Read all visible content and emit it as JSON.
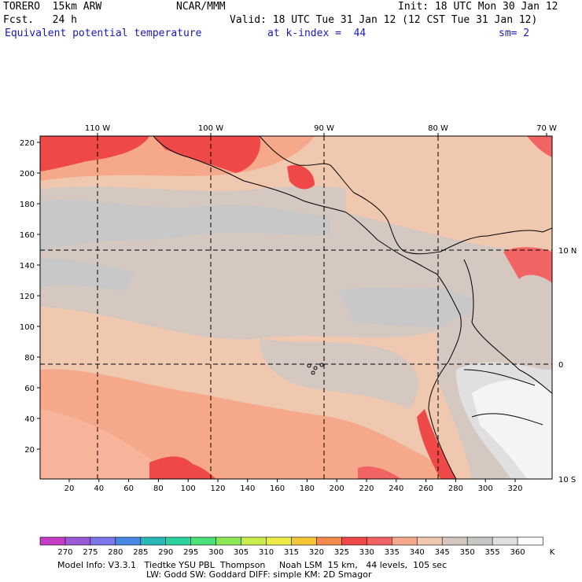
{
  "header": {
    "model": "TORERO  15km ARW",
    "center": "NCAR/MMM",
    "init": "Init: 18 UTC Mon 30 Jan 12",
    "fcst": "Fcst.   24 h",
    "valid": "Valid: 18 UTC Tue 31 Jan 12 (12 CST Tue 31 Jan 12)",
    "field": "Equivalent potential temperature",
    "level": "at k-index =  44",
    "smooth": "sm= 2"
  },
  "axes": {
    "top_lon": [
      "110 W",
      "100 W",
      "90 W",
      "80 W",
      "70 W"
    ],
    "left_y": [
      "220",
      "200",
      "180",
      "160",
      "140",
      "120",
      "100",
      "80",
      "60",
      "40",
      "20"
    ],
    "bottom_x": [
      "20",
      "40",
      "60",
      "80",
      "100",
      "120",
      "140",
      "160",
      "180",
      "200",
      "220",
      "240",
      "260",
      "280",
      "300",
      "320"
    ],
    "right_lat": [
      "10 N",
      "0",
      "10 S"
    ]
  },
  "colorbar": {
    "labels": [
      "270",
      "275",
      "280",
      "285",
      "290",
      "295",
      "300",
      "305",
      "310",
      "315",
      "320",
      "325",
      "330",
      "335",
      "340",
      "345",
      "350",
      "355",
      "360"
    ],
    "unit": "K",
    "colors": [
      "#c43cc4",
      "#9a5ad6",
      "#7a78e8",
      "#4a88e6",
      "#2ab8b8",
      "#2ad2a0",
      "#4ce07a",
      "#8ce858",
      "#c8ec4c",
      "#ecec46",
      "#f6c836",
      "#f68a4a",
      "#ee4848",
      "#f26464",
      "#f6a88a",
      "#f0c8b0",
      "#d4c8c0",
      "#c8c8c8",
      "#e0e0e0",
      "#ffffff"
    ]
  },
  "footer": {
    "line1": "Model Info: V3.3.1   Tiedtke YSU PBL  Thompson     Noah LSM  15 km,   44 levels,  105 sec",
    "line2": "LW: Godd SW: Goddard DIFF: simple KM: 2D Smagor"
  }
}
